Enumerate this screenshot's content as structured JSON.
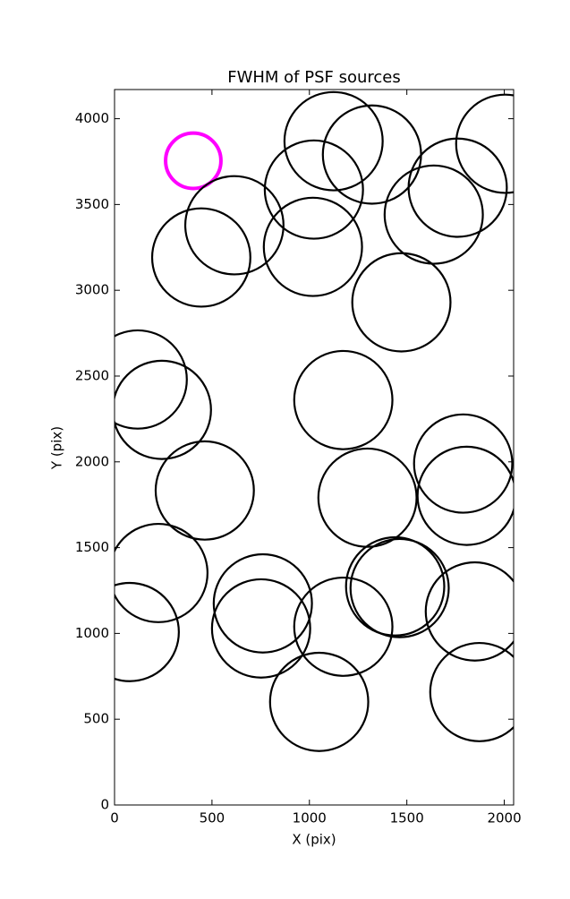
{
  "chart_data": {
    "type": "scatter",
    "title": "FWHM of PSF sources",
    "x_label": "X (pix)",
    "y_label": "Y (pix)",
    "x": [
      404,
      1124,
      1321,
      2005,
      1023,
      1761,
      1638,
      615,
      445,
      1018,
      1472,
      119,
      243,
      1174,
      1789,
      1807,
      463,
      1298,
      225,
      761,
      1440,
      1463,
      1849,
      78,
      752,
      1174,
      1872,
      1050
    ],
    "values": [
      3755,
      3869,
      3791,
      3854,
      3587,
      3598,
      3441,
      3379,
      3191,
      3253,
      2930,
      2480,
      2303,
      2360,
      1990,
      1802,
      1833,
      1791,
      1352,
      1175,
      1274,
      1264,
      1128,
      1008,
      1029,
      1039,
      658,
      601
    ],
    "sizes": [
      142,
      252,
      252,
      252,
      252,
      252,
      252,
      252,
      252,
      252,
      252,
      252,
      252,
      252,
      252,
      252,
      252,
      252,
      252,
      252,
      252,
      252,
      252,
      252,
      252,
      252,
      252,
      252
    ],
    "colors": [
      "#ff00ff",
      "#000000",
      "#000000",
      "#000000",
      "#000000",
      "#000000",
      "#000000",
      "#000000",
      "#000000",
      "#000000",
      "#000000",
      "#000000",
      "#000000",
      "#000000",
      "#000000",
      "#000000",
      "#000000",
      "#000000",
      "#000000",
      "#000000",
      "#000000",
      "#000000",
      "#000000",
      "#000000",
      "#000000",
      "#000000",
      "#000000",
      "#000000"
    ],
    "xlim": [
      0,
      2048
    ],
    "ylim": [
      0,
      4170
    ],
    "xticks": [
      0,
      500,
      1000,
      1500,
      2000
    ],
    "yticks": [
      0,
      500,
      1000,
      1500,
      2000,
      2500,
      3000,
      3500,
      4000
    ]
  }
}
